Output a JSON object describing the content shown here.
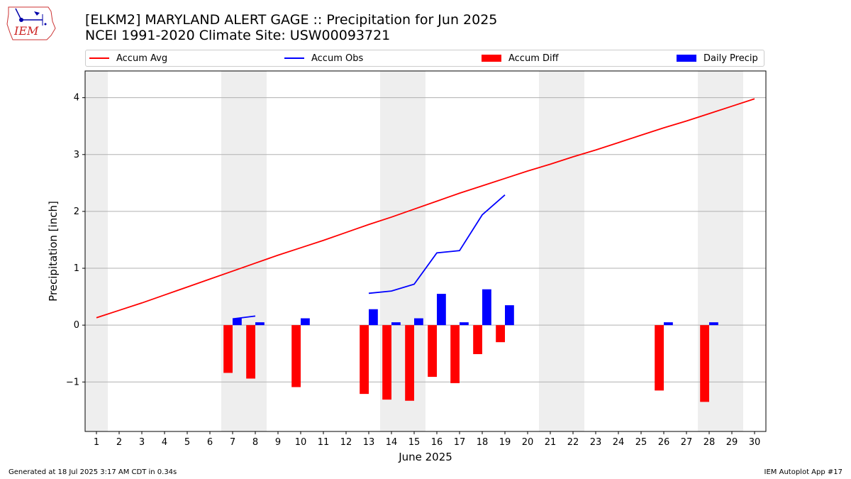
{
  "header": {
    "title_line1": "[ELKM2] MARYLAND ALERT GAGE :: Precipitation for Jun 2025",
    "title_line2": "NCEI 1991-2020 Climate Site: USW00093721",
    "logo_text": "IEM"
  },
  "footer": {
    "generated": "Generated at 18 Jul 2025 3:17 AM CDT in 0.34s",
    "app": "IEM Autoplot App #17"
  },
  "colors": {
    "avg": "#ff0000",
    "obs": "#0000ff",
    "diff": "#ff0000",
    "daily": "#0000ff",
    "weekend_shade": "#eeeeee",
    "grid": "#b0b0b0"
  },
  "chart_data": {
    "type": "bar",
    "xlabel": "June 2025",
    "ylabel": "Precipitation [inch]",
    "xlim": [
      0.5,
      30.5
    ],
    "ylim": [
      -1.87,
      4.47
    ],
    "yticks": [
      -1,
      0,
      1,
      2,
      3,
      4
    ],
    "xticks": [
      1,
      2,
      3,
      4,
      5,
      6,
      7,
      8,
      9,
      10,
      11,
      12,
      13,
      14,
      15,
      16,
      17,
      18,
      19,
      20,
      21,
      22,
      23,
      24,
      25,
      26,
      27,
      28,
      29,
      30
    ],
    "grid": "horizontal",
    "legend_position": "top",
    "weekend_days": [
      1,
      7,
      8,
      14,
      15,
      21,
      22,
      28,
      29
    ],
    "legend": [
      "Accum Avg",
      "Accum Obs",
      "Accum Diff",
      "Daily Precip"
    ],
    "series": [
      {
        "name": "Accum Avg",
        "kind": "line",
        "days": [
          1,
          2,
          3,
          4,
          5,
          6,
          7,
          8,
          9,
          10,
          11,
          12,
          13,
          14,
          15,
          16,
          17,
          18,
          19,
          20,
          21,
          22,
          23,
          24,
          25,
          26,
          27,
          28,
          29,
          30
        ],
        "values": [
          0.13,
          0.26,
          0.39,
          0.53,
          0.67,
          0.81,
          0.95,
          1.09,
          1.23,
          1.36,
          1.49,
          1.63,
          1.77,
          1.9,
          2.04,
          2.18,
          2.32,
          2.45,
          2.58,
          2.71,
          2.83,
          2.96,
          3.08,
          3.21,
          3.34,
          3.47,
          3.59,
          3.72,
          3.85,
          3.98
        ]
      },
      {
        "name": "Accum Obs",
        "kind": "line",
        "segments": [
          {
            "days": [
              7,
              8
            ],
            "values": [
              0.11,
              0.16
            ]
          },
          {
            "days": [
              13,
              14,
              15,
              16,
              17,
              18,
              19
            ],
            "values": [
              0.56,
              0.6,
              0.72,
              1.27,
              1.31,
              1.94,
              2.29
            ]
          }
        ]
      },
      {
        "name": "Accum Diff",
        "kind": "bar",
        "days": [
          7,
          8,
          10,
          13,
          14,
          15,
          16,
          17,
          18,
          19,
          26,
          28
        ],
        "values": [
          -0.84,
          -0.94,
          -1.09,
          -1.21,
          -1.31,
          -1.33,
          -0.91,
          -1.02,
          -0.51,
          -0.3,
          -1.15,
          -1.35
        ]
      },
      {
        "name": "Daily Precip",
        "kind": "bar",
        "days": [
          7,
          8,
          10,
          13,
          14,
          15,
          16,
          17,
          18,
          19,
          26,
          28
        ],
        "values": [
          0.12,
          0.05,
          0.12,
          0.28,
          0.05,
          0.12,
          0.55,
          0.05,
          0.63,
          0.35,
          0.05,
          0.05
        ]
      }
    ]
  }
}
